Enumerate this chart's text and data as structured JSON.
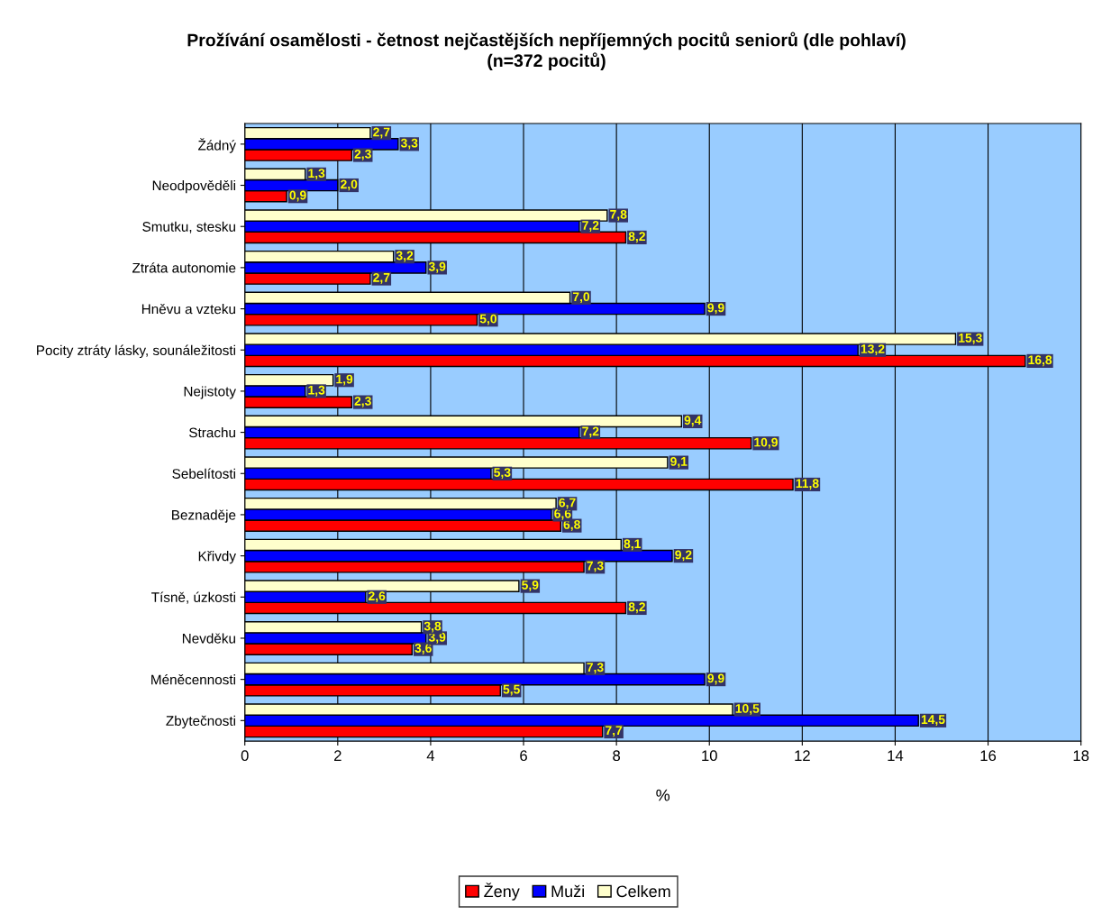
{
  "chart_data": {
    "type": "bar",
    "orientation": "horizontal",
    "title": "Prožívání osamělosti - četnost nejčastějších nepříjemných pocitů seniorů (dle pohlaví)\n(n=372 pocitů)",
    "xlabel": "%",
    "categories": [
      "Žádný",
      "Neodpověděli",
      "Smutku, stesku",
      "Ztráta autonomie",
      "Hněvu a vzteku",
      "Pocity ztráty lásky, sounáležitosti",
      "Nejistoty",
      "Strachu",
      "Sebelítosti",
      "Beznaděje",
      "Křivdy",
      "Tísně, úzkosti",
      "Nevděku",
      "Méněcennosti",
      "Zbytečnosti"
    ],
    "series": [
      {
        "name": "Ženy",
        "color": "#ff0000",
        "values": [
          2.3,
          0.9,
          8.2,
          2.7,
          5.0,
          16.8,
          2.3,
          10.9,
          11.8,
          6.8,
          7.3,
          8.2,
          3.6,
          5.5,
          7.7
        ],
        "value_labels": [
          "2,3",
          "0,9",
          "8,2",
          "2,7",
          "5,0",
          "16,8",
          "2,3",
          "10,9",
          "11,8",
          "6,8",
          "7,3",
          "8,2",
          "3,6",
          "5,5",
          "7,7"
        ]
      },
      {
        "name": "Muži",
        "color": "#0000ff",
        "values": [
          3.3,
          2.0,
          7.2,
          3.9,
          9.9,
          13.2,
          1.3,
          7.2,
          5.3,
          6.6,
          9.2,
          2.6,
          3.9,
          9.9,
          14.5
        ],
        "value_labels": [
          "3,3",
          "2,0",
          "7,2",
          "3,9",
          "9,9",
          "13,2",
          "1,3",
          "7,2",
          "5,3",
          "6,6",
          "9,2",
          "2,6",
          "3,9",
          "9,9",
          "14,5"
        ]
      },
      {
        "name": "Celkem",
        "color": "#ffffcc",
        "values": [
          2.7,
          1.3,
          7.8,
          3.2,
          7.0,
          15.3,
          1.9,
          9.4,
          9.1,
          6.7,
          8.1,
          5.9,
          3.8,
          7.3,
          10.5
        ],
        "value_labels": [
          "2,7",
          "1,3",
          "7,8",
          "3,2",
          "7,0",
          "15,3",
          "1,9",
          "9,4",
          "9,1",
          "6,7",
          "8,1",
          "5,9",
          "3,8",
          "7,3",
          "10,5"
        ]
      }
    ],
    "xlim": [
      0,
      18
    ],
    "xticks": [
      0,
      2,
      4,
      6,
      8,
      10,
      12,
      14,
      16,
      18
    ],
    "grid": "x",
    "legend": "bottom"
  }
}
